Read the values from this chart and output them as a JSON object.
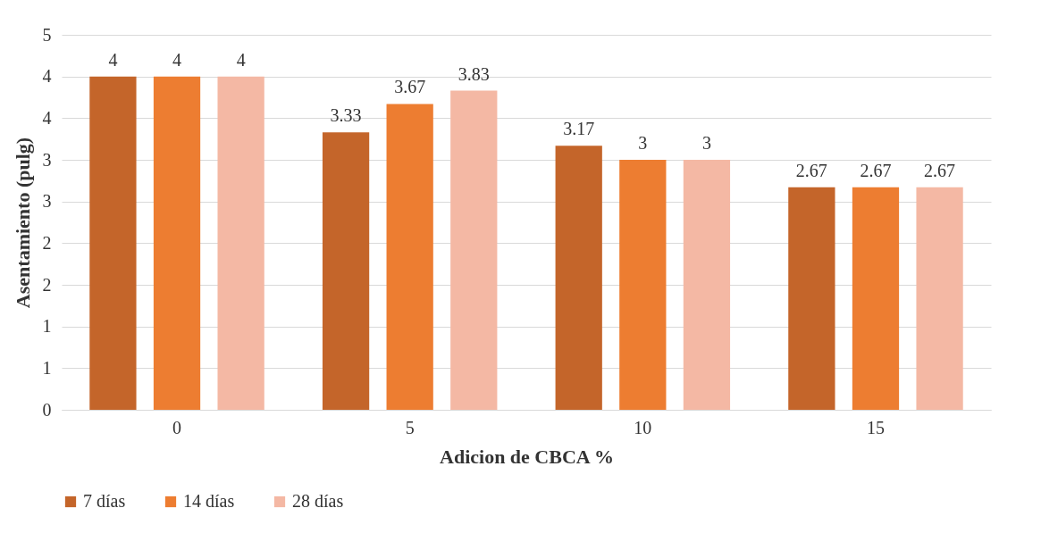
{
  "chart_data": {
    "type": "bar",
    "xlabel": "Adicion de CBCA %",
    "ylabel": "Asentamiento (pulg)",
    "categories": [
      "0",
      "5",
      "10",
      "15"
    ],
    "series": [
      {
        "name": "7 días",
        "color": "#c4652a",
        "values": [
          4,
          3.33,
          3.17,
          2.67
        ]
      },
      {
        "name": "14 días",
        "color": "#ed7d31",
        "values": [
          4,
          3.67,
          3,
          2.67
        ]
      },
      {
        "name": "28 días",
        "color": "#f4b8a4",
        "values": [
          4,
          3.83,
          3,
          2.67
        ]
      }
    ],
    "ylim": [
      0,
      4.5
    ],
    "yticks": [
      0,
      {
        "value": 0.5,
        "label": "1"
      },
      1,
      {
        "value": 1.5,
        "label": "2"
      },
      2,
      {
        "value": 2.5,
        "label": "3"
      },
      3,
      {
        "value": 3.5,
        "label": "4"
      },
      4,
      {
        "value": 4.5,
        "label": "5"
      }
    ],
    "data_labels": true,
    "grid": "y",
    "legend": "bottom"
  }
}
